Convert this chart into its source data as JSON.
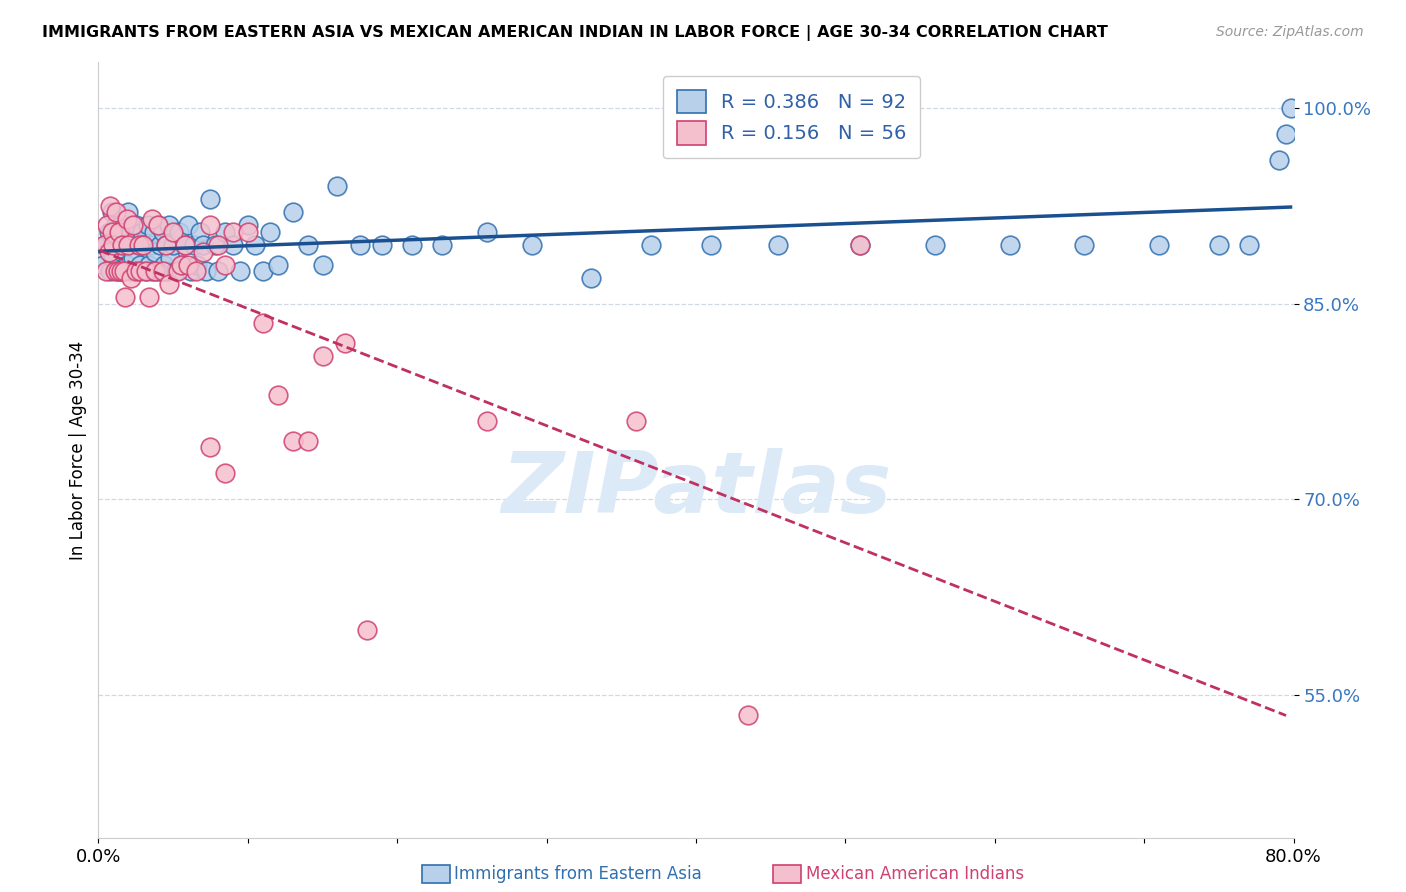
{
  "title": "IMMIGRANTS FROM EASTERN ASIA VS MEXICAN AMERICAN INDIAN IN LABOR FORCE | AGE 30-34 CORRELATION CHART",
  "source": "Source: ZipAtlas.com",
  "ylabel": "In Labor Force | Age 30-34",
  "xmin": 0.0,
  "xmax": 0.8,
  "ymin": 0.44,
  "ymax": 1.035,
  "yticks": [
    0.55,
    0.7,
    0.85,
    1.0
  ],
  "ytick_labels": [
    "55.0%",
    "70.0%",
    "85.0%",
    "100.0%"
  ],
  "xticks": [
    0.0,
    0.1,
    0.2,
    0.3,
    0.4,
    0.5,
    0.6,
    0.7,
    0.8
  ],
  "xtick_labels": [
    "0.0%",
    "",
    "",
    "",
    "",
    "",
    "",
    "",
    "80.0%"
  ],
  "legend_blue": "R = 0.386   N = 92",
  "legend_pink": "R = 0.156   N = 56",
  "blue_face": "#b8d0ea",
  "blue_edge": "#3070b0",
  "pink_face": "#f5c0ce",
  "pink_edge": "#d04070",
  "blue_line": "#1a5090",
  "pink_line": "#c03060",
  "watermark_text": "ZIPatlas",
  "watermark_color": "#dceaf8",
  "bottom_label1": "Immigrants from Eastern Asia",
  "bottom_label2": "Mexican American Indians",
  "blue_x": [
    0.003,
    0.005,
    0.007,
    0.008,
    0.009,
    0.01,
    0.01,
    0.012,
    0.013,
    0.014,
    0.015,
    0.016,
    0.016,
    0.017,
    0.018,
    0.019,
    0.02,
    0.021,
    0.022,
    0.022,
    0.023,
    0.024,
    0.025,
    0.026,
    0.027,
    0.028,
    0.029,
    0.03,
    0.032,
    0.033,
    0.034,
    0.035,
    0.036,
    0.037,
    0.038,
    0.039,
    0.04,
    0.041,
    0.042,
    0.043,
    0.044,
    0.045,
    0.046,
    0.047,
    0.048,
    0.05,
    0.052,
    0.054,
    0.056,
    0.058,
    0.06,
    0.062,
    0.064,
    0.066,
    0.068,
    0.07,
    0.072,
    0.075,
    0.078,
    0.08,
    0.085,
    0.09,
    0.095,
    0.1,
    0.105,
    0.11,
    0.115,
    0.12,
    0.13,
    0.14,
    0.15,
    0.16,
    0.175,
    0.19,
    0.21,
    0.23,
    0.26,
    0.29,
    0.33,
    0.37,
    0.41,
    0.455,
    0.51,
    0.56,
    0.61,
    0.66,
    0.71,
    0.75,
    0.77,
    0.79,
    0.795,
    0.798
  ],
  "blue_y": [
    0.88,
    0.895,
    0.905,
    0.875,
    0.92,
    0.9,
    0.885,
    0.91,
    0.895,
    0.875,
    0.91,
    0.89,
    0.875,
    0.905,
    0.895,
    0.88,
    0.92,
    0.895,
    0.875,
    0.905,
    0.885,
    0.9,
    0.91,
    0.875,
    0.895,
    0.88,
    0.905,
    0.895,
    0.875,
    0.91,
    0.88,
    0.895,
    0.875,
    0.905,
    0.89,
    0.875,
    0.91,
    0.895,
    0.875,
    0.905,
    0.88,
    0.895,
    0.875,
    0.91,
    0.885,
    0.895,
    0.875,
    0.905,
    0.88,
    0.895,
    0.91,
    0.875,
    0.895,
    0.88,
    0.905,
    0.895,
    0.875,
    0.93,
    0.895,
    0.875,
    0.905,
    0.895,
    0.875,
    0.91,
    0.895,
    0.875,
    0.905,
    0.88,
    0.92,
    0.895,
    0.88,
    0.94,
    0.895,
    0.895,
    0.895,
    0.895,
    0.905,
    0.895,
    0.87,
    0.895,
    0.895,
    0.895,
    0.895,
    0.895,
    0.895,
    0.895,
    0.895,
    0.895,
    0.895,
    0.96,
    0.98,
    1.0
  ],
  "pink_x": [
    0.004,
    0.005,
    0.006,
    0.007,
    0.008,
    0.009,
    0.01,
    0.011,
    0.012,
    0.013,
    0.014,
    0.015,
    0.016,
    0.017,
    0.018,
    0.019,
    0.02,
    0.022,
    0.023,
    0.025,
    0.027,
    0.028,
    0.03,
    0.032,
    0.034,
    0.036,
    0.038,
    0.04,
    0.043,
    0.045,
    0.047,
    0.05,
    0.053,
    0.055,
    0.058,
    0.06,
    0.065,
    0.07,
    0.075,
    0.08,
    0.085,
    0.09,
    0.1,
    0.11,
    0.12,
    0.13,
    0.14,
    0.15,
    0.165,
    0.18,
    0.075,
    0.085,
    0.26,
    0.36,
    0.435,
    0.51
  ],
  "pink_y": [
    0.895,
    0.875,
    0.91,
    0.89,
    0.925,
    0.905,
    0.895,
    0.875,
    0.92,
    0.875,
    0.905,
    0.875,
    0.895,
    0.875,
    0.855,
    0.915,
    0.895,
    0.87,
    0.91,
    0.875,
    0.895,
    0.875,
    0.895,
    0.875,
    0.855,
    0.915,
    0.875,
    0.91,
    0.875,
    0.895,
    0.865,
    0.905,
    0.875,
    0.88,
    0.895,
    0.88,
    0.875,
    0.89,
    0.91,
    0.895,
    0.88,
    0.905,
    0.905,
    0.835,
    0.78,
    0.745,
    0.745,
    0.81,
    0.82,
    0.6,
    0.74,
    0.72,
    0.76,
    0.76,
    0.535,
    0.895
  ]
}
